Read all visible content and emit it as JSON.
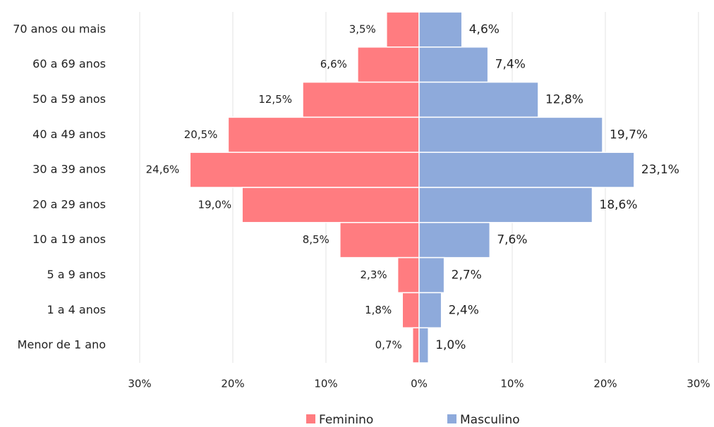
{
  "chart_data": {
    "type": "pyramid",
    "categories": [
      "70 anos ou mais",
      "60 a 69 anos",
      "50 a 59 anos",
      "40 a 49 anos",
      "30 a 39 anos",
      "20 a 29 anos",
      "10 a 19 anos",
      "5 a 9 anos",
      "1 a 4 anos",
      "Menor de 1 ano"
    ],
    "series": [
      {
        "name": "Feminino",
        "color": "#ff7c80",
        "values": [
          3.5,
          6.6,
          12.5,
          20.5,
          24.6,
          19.0,
          8.5,
          2.3,
          1.8,
          0.7
        ],
        "value_labels": [
          "3,5%",
          "6,6%",
          "12,5%",
          "20,5%",
          "24,6%",
          "19,0%",
          "8,5%",
          "2,3%",
          "1,8%",
          "0,7%"
        ]
      },
      {
        "name": "Masculino",
        "color": "#8eaadb",
        "values": [
          4.6,
          7.4,
          12.8,
          19.7,
          23.1,
          18.6,
          7.6,
          2.7,
          2.4,
          1.0
        ],
        "value_labels": [
          "4,6%",
          "7,4%",
          "12,8%",
          "19,7%",
          "23,1%",
          "18,6%",
          "7,6%",
          "2,7%",
          "2,4%",
          "1,0%"
        ]
      }
    ],
    "xlim": [
      -30,
      30
    ],
    "xticks": [
      {
        "value": -30,
        "label": "30%"
      },
      {
        "value": -20,
        "label": "20%"
      },
      {
        "value": -10,
        "label": "10%"
      },
      {
        "value": 0,
        "label": "0%"
      },
      {
        "value": 10,
        "label": "10%"
      },
      {
        "value": 20,
        "label": "20%"
      },
      {
        "value": 30,
        "label": "30%"
      }
    ],
    "grid": true,
    "legend": "bottom"
  }
}
